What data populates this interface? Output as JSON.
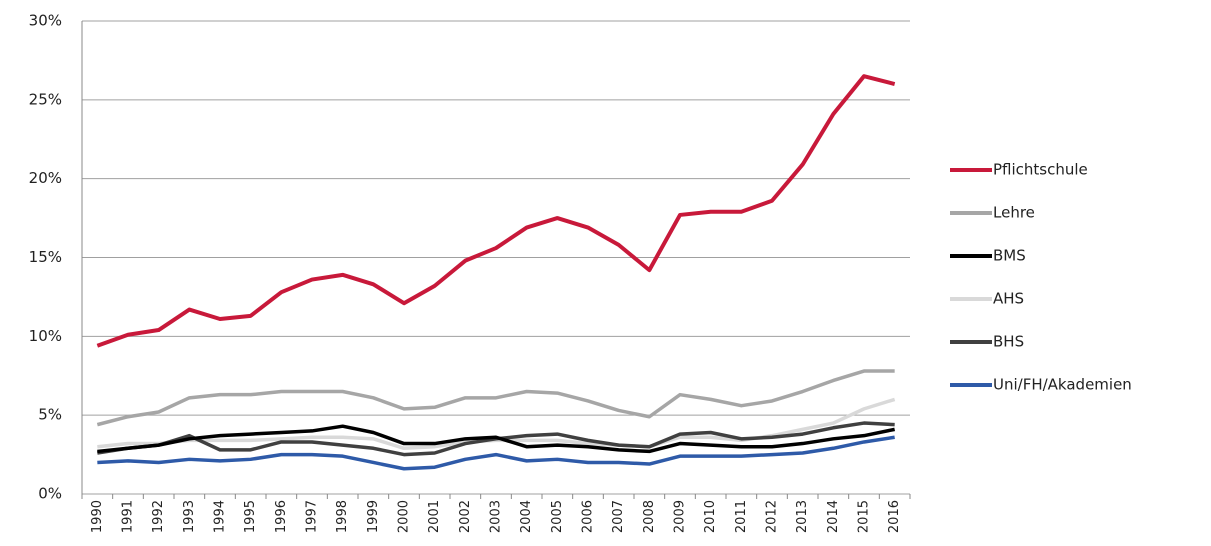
{
  "chart_data": {
    "type": "line",
    "categories": [
      "1990",
      "1991",
      "1992",
      "1993",
      "1994",
      "1995",
      "1996",
      "1997",
      "1998",
      "1999",
      "2000",
      "2001",
      "2002",
      "2003",
      "2004",
      "2005",
      "2006",
      "2007",
      "2008",
      "2009",
      "2010",
      "2011",
      "2012",
      "2013",
      "2014",
      "2015",
      "2016"
    ],
    "series": [
      {
        "name": "Pflichtschule",
        "color": "#c8193a",
        "values": [
          9.4,
          10.1,
          10.4,
          11.7,
          11.1,
          11.3,
          12.8,
          13.6,
          13.9,
          13.3,
          12.1,
          13.2,
          14.8,
          15.6,
          16.9,
          17.5,
          16.9,
          15.8,
          14.2,
          17.7,
          17.9,
          17.9,
          18.6,
          20.9,
          24.1,
          26.5,
          26.0
        ]
      },
      {
        "name": "Lehre",
        "color": "#a6a6a6",
        "values": [
          4.4,
          4.9,
          5.2,
          6.1,
          6.3,
          6.3,
          6.5,
          6.5,
          6.5,
          6.1,
          5.4,
          5.5,
          6.1,
          6.1,
          6.5,
          6.4,
          5.9,
          5.3,
          4.9,
          6.3,
          6.0,
          5.6,
          5.9,
          6.5,
          7.2,
          7.8,
          7.8
        ]
      },
      {
        "name": "BMS",
        "color": "#000000",
        "values": [
          2.7,
          2.9,
          3.1,
          3.5,
          3.7,
          3.8,
          3.9,
          4.0,
          4.3,
          3.9,
          3.2,
          3.2,
          3.5,
          3.6,
          3.0,
          3.1,
          3.0,
          2.8,
          2.7,
          3.2,
          3.1,
          3.0,
          3.0,
          3.2,
          3.5,
          3.7,
          4.1
        ]
      },
      {
        "name": "AHS",
        "color": "#d9d9d9",
        "values": [
          3.0,
          3.2,
          3.2,
          3.4,
          3.4,
          3.4,
          3.5,
          3.6,
          3.6,
          3.5,
          2.9,
          3.0,
          3.3,
          3.4,
          3.4,
          3.4,
          3.2,
          3.1,
          3.0,
          3.6,
          3.6,
          3.4,
          3.7,
          4.1,
          4.5,
          5.4,
          6.0
        ]
      },
      {
        "name": "BHS",
        "color": "#404040",
        "values": [
          2.6,
          2.9,
          3.1,
          3.7,
          2.8,
          2.8,
          3.3,
          3.3,
          3.1,
          2.9,
          2.5,
          2.6,
          3.2,
          3.5,
          3.7,
          3.8,
          3.4,
          3.1,
          3.0,
          3.8,
          3.9,
          3.5,
          3.6,
          3.8,
          4.2,
          4.5,
          4.4
        ]
      },
      {
        "name": "Uni/FH/Akademien",
        "color": "#2e5aa8",
        "values": [
          2.0,
          2.1,
          2.0,
          2.2,
          2.1,
          2.2,
          2.5,
          2.5,
          2.4,
          2.0,
          1.6,
          1.7,
          2.2,
          2.5,
          2.1,
          2.2,
          2.0,
          2.0,
          1.9,
          2.4,
          2.4,
          2.4,
          2.5,
          2.6,
          2.9,
          3.3,
          3.6
        ]
      }
    ],
    "ylim": [
      0,
      30
    ],
    "yticks": [
      {
        "value": 0,
        "label": "0%"
      },
      {
        "value": 5,
        "label": "5%"
      },
      {
        "value": 10,
        "label": "10%"
      },
      {
        "value": 15,
        "label": "15%"
      },
      {
        "value": 20,
        "label": "20%"
      },
      {
        "value": 25,
        "label": "25%"
      },
      {
        "value": 30,
        "label": "30%"
      }
    ],
    "grid": true,
    "legend": "right"
  }
}
